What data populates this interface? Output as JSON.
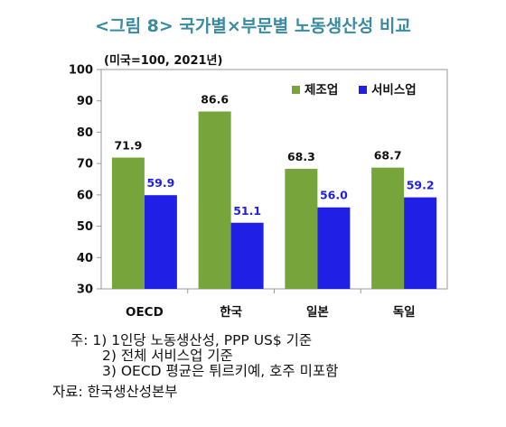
{
  "title": "<그림 8> 국가별×부문별 노동생산성 비교",
  "chart_data": {
    "type": "bar",
    "unit_label": "(미국=100, 2021년)",
    "categories": [
      "OECD",
      "한국",
      "일본",
      "독일"
    ],
    "series": [
      {
        "name": "제조업",
        "color": "#77a53c",
        "values": [
          71.9,
          86.6,
          68.3,
          68.7
        ],
        "labels": [
          "71.9",
          "86.6",
          "68.3",
          "68.7"
        ]
      },
      {
        "name": "서비스업",
        "color": "#1f1fe6",
        "values": [
          59.9,
          51.1,
          56.0,
          59.2
        ],
        "labels": [
          "59.9",
          "51.1",
          "56.0",
          "59.2"
        ]
      }
    ],
    "ylim": [
      30,
      100
    ],
    "yticks": [
      "30",
      "40",
      "50",
      "60",
      "70",
      "80",
      "90",
      "100"
    ],
    "legend_position": "top-right",
    "grid": false
  },
  "notes": {
    "prefix": "주:",
    "items": [
      "1) 1인당 노동생산성, PPP US$ 기준",
      "2) 전체 서비스업 기준",
      "3) OECD 평균은 튀르키예, 호주 미포함"
    ]
  },
  "source": "자료: 한국생산성본부"
}
